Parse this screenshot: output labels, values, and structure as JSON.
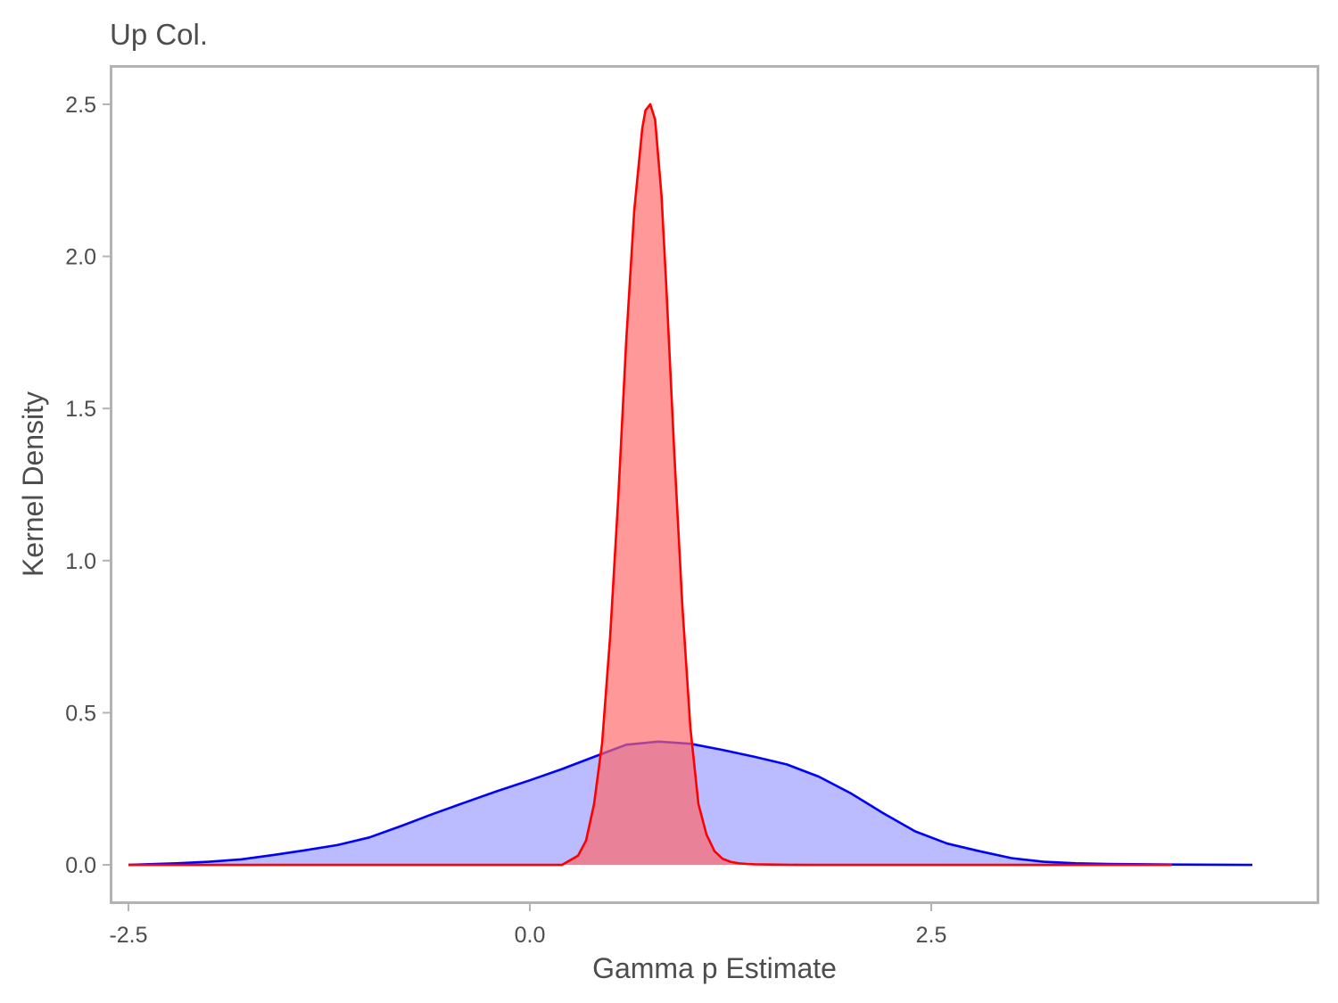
{
  "chart_data": {
    "type": "area",
    "title": "Up Col.",
    "xlabel": "Gamma p Estimate",
    "ylabel": "Kernel Density",
    "xlim": [
      -2.6,
      4.9
    ],
    "ylim": [
      -0.12,
      2.62
    ],
    "xticks": [
      -2.5,
      0.0,
      2.5
    ],
    "xtick_labels": [
      "-2.5",
      "0.0",
      "2.5"
    ],
    "yticks": [
      0.0,
      0.5,
      1.0,
      1.5,
      2.0,
      2.5
    ],
    "ytick_labels": [
      "0.0",
      "0.5",
      "1.0",
      "1.5",
      "2.0",
      "2.5"
    ],
    "grid": false,
    "legend": "none",
    "series": [
      {
        "color": "#0000ff",
        "fill": "#9999ff",
        "x": [
          -2.5,
          -2.2,
          -2.0,
          -1.8,
          -1.6,
          -1.4,
          -1.2,
          -1.0,
          -0.8,
          -0.6,
          -0.4,
          -0.2,
          0.0,
          0.2,
          0.4,
          0.6,
          0.8,
          1.0,
          1.2,
          1.4,
          1.6,
          1.8,
          2.0,
          2.2,
          2.4,
          2.6,
          2.8,
          3.0,
          3.2,
          3.4,
          3.6,
          4.0,
          4.5
        ],
        "y": [
          0.0,
          0.005,
          0.01,
          0.018,
          0.032,
          0.048,
          0.065,
          0.09,
          0.128,
          0.168,
          0.206,
          0.243,
          0.278,
          0.315,
          0.355,
          0.395,
          0.405,
          0.398,
          0.378,
          0.355,
          0.33,
          0.29,
          0.235,
          0.17,
          0.11,
          0.07,
          0.045,
          0.022,
          0.01,
          0.005,
          0.003,
          0.001,
          0.0
        ]
      },
      {
        "color": "#ff0000",
        "fill": "#ff6666",
        "x": [
          -2.5,
          0.0,
          0.2,
          0.3,
          0.35,
          0.4,
          0.45,
          0.5,
          0.55,
          0.6,
          0.65,
          0.7,
          0.72,
          0.75,
          0.78,
          0.82,
          0.85,
          0.9,
          0.95,
          1.0,
          1.05,
          1.1,
          1.15,
          1.2,
          1.25,
          1.3,
          1.35,
          1.4,
          1.5,
          1.7,
          2.0,
          4.0
        ],
        "y": [
          0.0,
          0.0,
          0.0,
          0.03,
          0.08,
          0.2,
          0.4,
          0.75,
          1.2,
          1.72,
          2.15,
          2.42,
          2.48,
          2.5,
          2.45,
          2.2,
          1.9,
          1.35,
          0.85,
          0.45,
          0.2,
          0.1,
          0.045,
          0.02,
          0.01,
          0.005,
          0.003,
          0.002,
          0.001,
          0.0,
          0.0,
          0.0
        ]
      }
    ]
  }
}
